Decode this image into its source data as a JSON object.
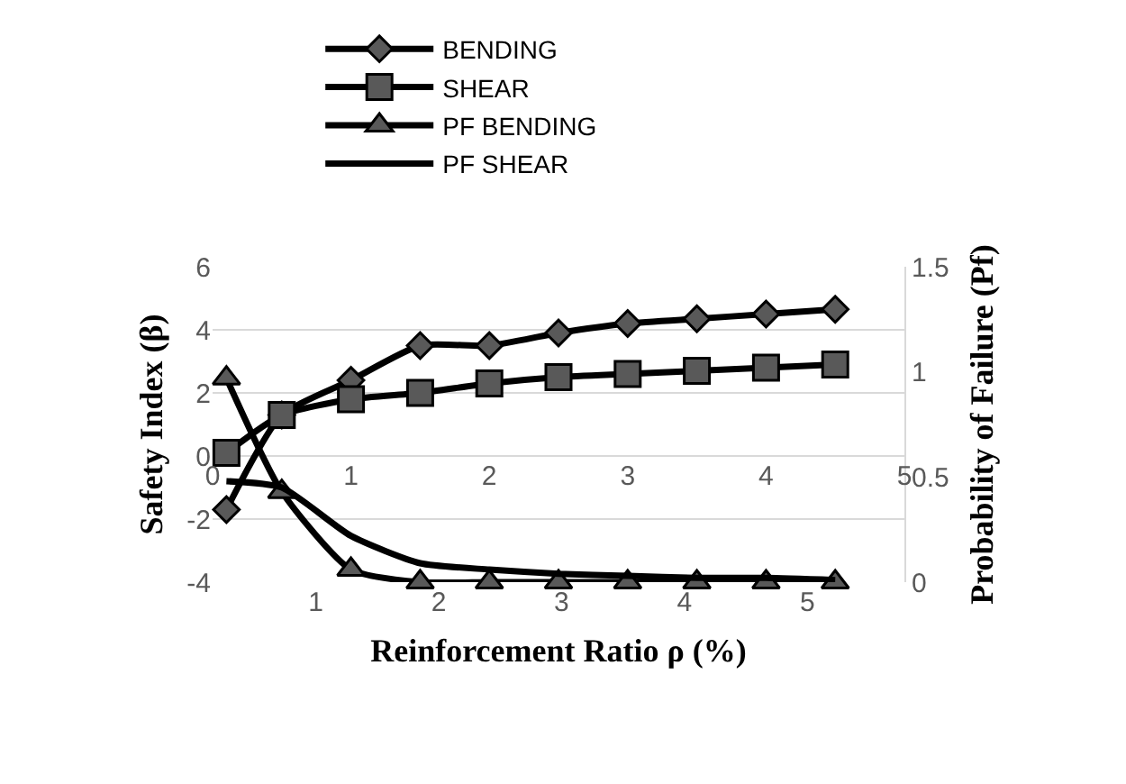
{
  "chart_data": {
    "type": "line",
    "xlabel": "Reinforcement Ratio ρ (%)",
    "ylabel": "Safety Index (β)",
    "y2label": "Probability of Failure (Pf)",
    "x": [
      0.1,
      0.5,
      1,
      1.5,
      2,
      2.5,
      3,
      3.5,
      4,
      4.5
    ],
    "series": [
      {
        "name": "BENDING",
        "color": "#000000",
        "marker": "diamond",
        "values": [
          -1.7,
          1.3,
          2.4,
          3.5,
          3.5,
          3.9,
          4.2,
          4.35,
          4.5,
          4.65
        ]
      },
      {
        "name": "SHEAR",
        "color": "#000000",
        "marker": "square",
        "values": [
          0.1,
          1.3,
          1.8,
          2.0,
          2.3,
          2.5,
          2.6,
          2.7,
          2.8,
          2.9
        ]
      },
      {
        "name": "PF BENDING",
        "color": "#000000",
        "marker": "triangle",
        "axis": "y2",
        "values": [
          0.97,
          0.43,
          0.06,
          0.0,
          0.0,
          0.0,
          0.0,
          0.0,
          0.0,
          0.0
        ]
      },
      {
        "name": "PF SHEAR",
        "color": "#000000",
        "marker": "none",
        "axis": "y2",
        "values": [
          0.48,
          0.45,
          0.22,
          0.09,
          0.06,
          0.04,
          0.03,
          0.02,
          0.02,
          0.01
        ]
      }
    ],
    "xlim": [
      0,
      5
    ],
    "xticks": [
      0,
      1,
      2,
      3,
      4,
      5
    ],
    "x2lim": [
      0.16,
      5.79
    ],
    "x2ticks": [
      1,
      2,
      3,
      4,
      5
    ],
    "ylim": [
      -4,
      6
    ],
    "yticks": [
      -4,
      -2,
      0,
      2,
      4,
      6
    ],
    "y2lim": [
      0,
      1.5
    ],
    "y2ticks": [
      0,
      0.5,
      1,
      1.5
    ],
    "grid": "y",
    "legend": "top",
    "line_style": "solid"
  }
}
